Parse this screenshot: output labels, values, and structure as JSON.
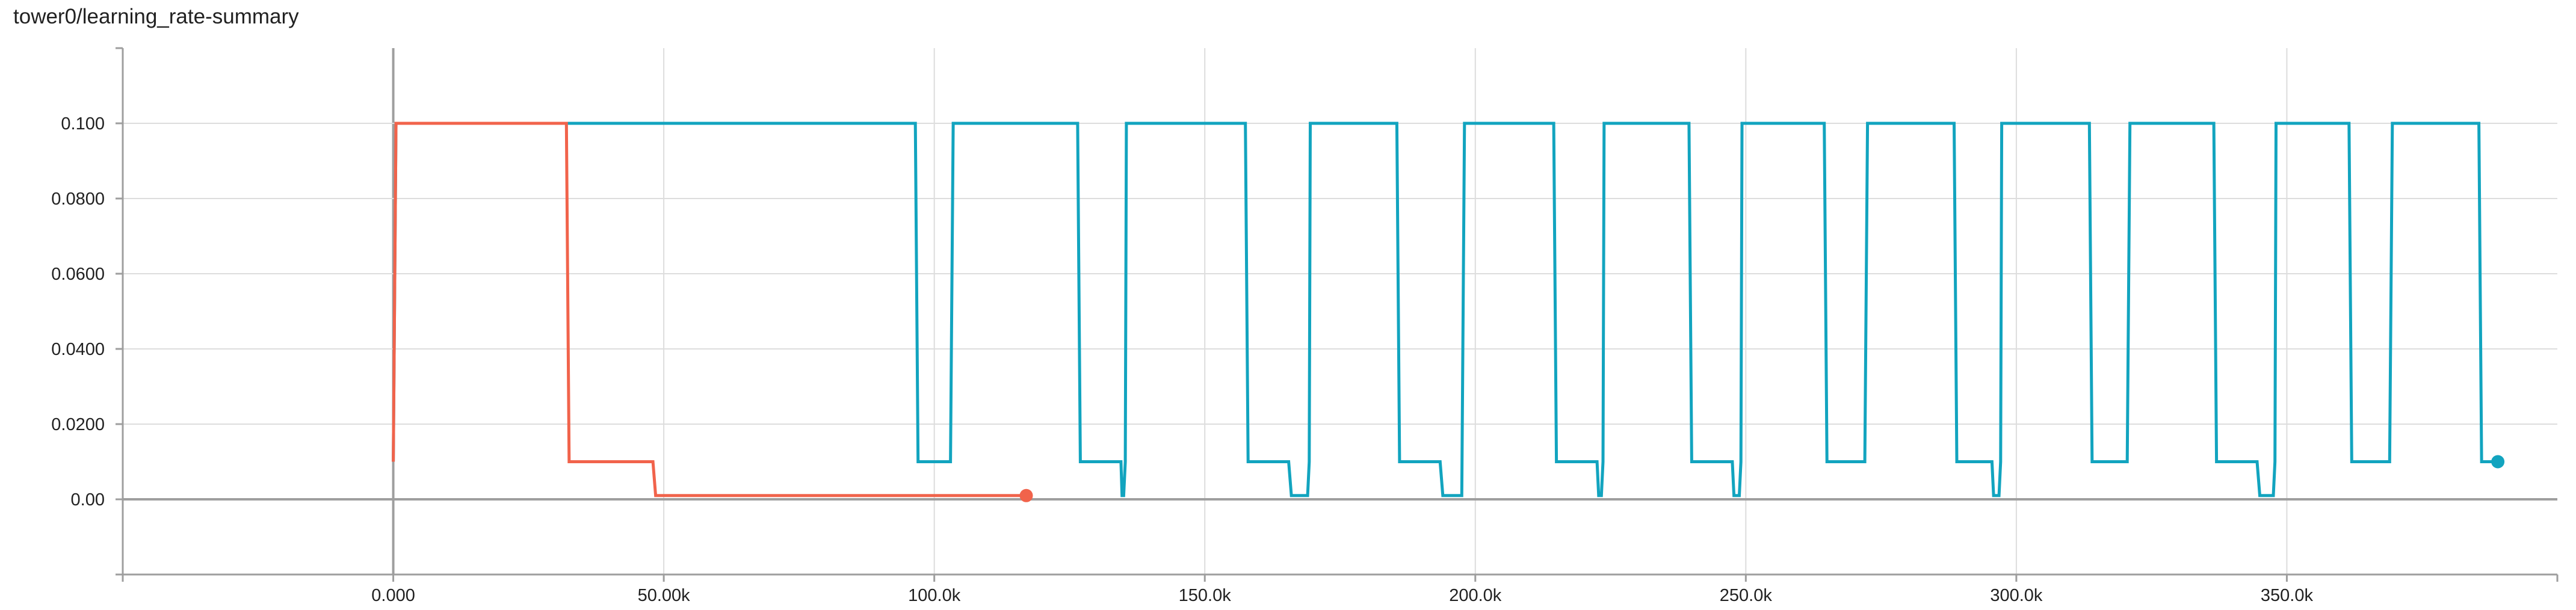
{
  "chart_data": {
    "type": "line",
    "title": "tower0/learning_rate-summary",
    "xlabel": "",
    "ylabel": "",
    "xlim": [
      -50000,
      400000
    ],
    "ylim": [
      -0.02,
      0.12
    ],
    "x_ticks": [
      0,
      50000,
      100000,
      150000,
      200000,
      250000,
      300000,
      350000
    ],
    "x_tick_labels": [
      "0.000",
      "50.00k",
      "100.0k",
      "150.0k",
      "200.0k",
      "250.0k",
      "300.0k",
      "350.0k"
    ],
    "y_ticks": [
      0,
      0.02,
      0.04,
      0.06,
      0.08,
      0.1
    ],
    "y_tick_labels": [
      "0.00",
      "0.0200",
      "0.0400",
      "0.0600",
      "0.0800",
      "0.100"
    ],
    "grid": true,
    "legend": "none",
    "series": [
      {
        "color": "#12a4bf",
        "x": [
          0,
          500,
          96500,
          97000,
          103000,
          103500,
          126500,
          127000,
          134500,
          134700,
          135000,
          135300,
          135500,
          157500,
          158000,
          165500,
          166000,
          169000,
          169300,
          169500,
          185500,
          186000,
          193500,
          194000,
          197500,
          198000,
          214500,
          215000,
          222500,
          222800,
          223300,
          223600,
          223800,
          239500,
          240000,
          247500,
          247800,
          248800,
          249100,
          249300,
          264500,
          265000,
          272000,
          272500,
          288500,
          289000,
          295500,
          295800,
          296800,
          297100,
          297300,
          313500,
          314000,
          320500,
          321000,
          336500,
          337000,
          344500,
          345000,
          347500,
          347800,
          348000,
          361500,
          362000,
          369000,
          369500,
          385500,
          386000,
          389000
        ],
        "values": [
          0.01,
          0.1,
          0.1,
          0.01,
          0.01,
          0.1,
          0.1,
          0.01,
          0.01,
          0.001,
          0.001,
          0.01,
          0.1,
          0.1,
          0.01,
          0.01,
          0.001,
          0.001,
          0.01,
          0.1,
          0.1,
          0.01,
          0.01,
          0.001,
          0.001,
          0.1,
          0.1,
          0.01,
          0.01,
          0.001,
          0.001,
          0.01,
          0.1,
          0.1,
          0.01,
          0.01,
          0.001,
          0.001,
          0.01,
          0.1,
          0.1,
          0.01,
          0.01,
          0.1,
          0.1,
          0.01,
          0.01,
          0.001,
          0.001,
          0.01,
          0.1,
          0.1,
          0.01,
          0.01,
          0.1,
          0.1,
          0.01,
          0.01,
          0.001,
          0.001,
          0.01,
          0.1,
          0.1,
          0.01,
          0.01,
          0.1,
          0.1,
          0.01,
          0.01
        ]
      },
      {
        "color": "#f1634b",
        "x": [
          0,
          500,
          32000,
          32500,
          48000,
          48500,
          117000
        ],
        "values": [
          0.01,
          0.1,
          0.1,
          0.01,
          0.01,
          0.001,
          0.001
        ]
      }
    ]
  }
}
